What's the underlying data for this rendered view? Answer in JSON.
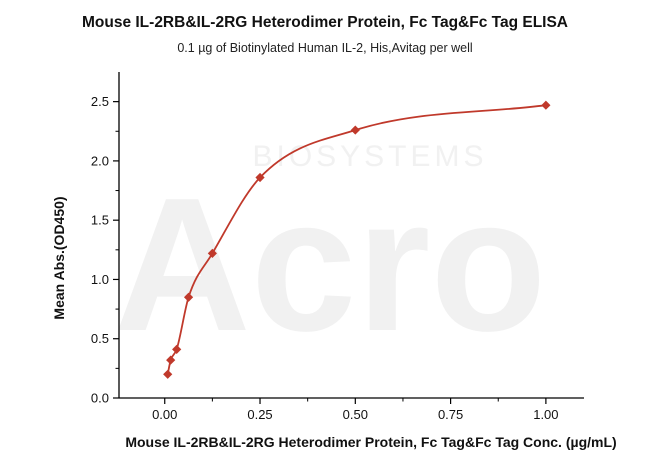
{
  "title": "Mouse IL-2RB&IL-2RG Heterodimer Protein, Fc Tag&Fc Tag  ELISA",
  "subtitle": "0.1 µg of Biotinylated Human IL-2, His,Avitag per well",
  "watermark": {
    "main": "Acro",
    "sub": "BIOSYSTEMS"
  },
  "colors": {
    "series": "#c0392b",
    "axis": "#000000"
  },
  "chart_data": {
    "type": "scatter",
    "title": "Mouse IL-2RB&IL-2RG Heterodimer Protein, Fc Tag&Fc Tag  ELISA",
    "subtitle": "0.1 µg of Biotinylated Human IL-2, His,Avitag per well",
    "xlabel": "Mouse IL-2RB&IL-2RG Heterodimer Protein, Fc Tag&Fc Tag  Conc. (µg/mL)",
    "ylabel": "Mean Abs.(OD450)",
    "xlim": [
      -0.12,
      1.1
    ],
    "ylim": [
      0,
      2.75
    ],
    "xticks": [
      "0.00",
      "0.25",
      "0.50",
      "0.75",
      "1.00"
    ],
    "yticks": [
      "0.0",
      "0.5",
      "1.0",
      "1.5",
      "2.0",
      "2.5"
    ],
    "grid": false,
    "series": [
      {
        "marker": "diamond",
        "fit": "four-parameter logistic curve",
        "points": [
          {
            "x": 0.0078,
            "y": 0.2
          },
          {
            "x": 0.0156,
            "y": 0.32
          },
          {
            "x": 0.0313,
            "y": 0.41
          },
          {
            "x": 0.0625,
            "y": 0.85
          },
          {
            "x": 0.125,
            "y": 1.22
          },
          {
            "x": 0.25,
            "y": 1.86
          },
          {
            "x": 0.5,
            "y": 2.26
          },
          {
            "x": 1.0,
            "y": 2.47
          }
        ]
      }
    ]
  }
}
